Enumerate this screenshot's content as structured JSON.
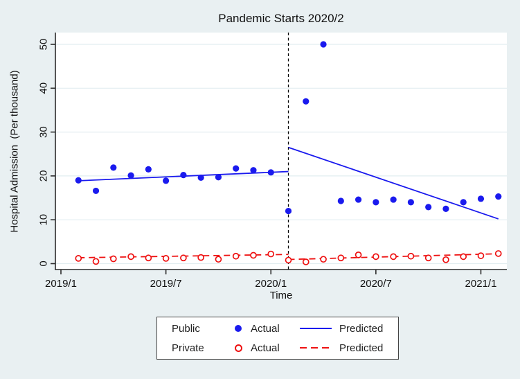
{
  "chart_data": {
    "type": "scatter",
    "title": "Pandemic Starts 2020/2",
    "xlabel": "Time",
    "ylabel": "Hospital Admission  (Per thousand)",
    "x_ticks": [
      "2019/1",
      "2019/7",
      "2020/1",
      "2020/7",
      "2021/1"
    ],
    "y_ticks": [
      0,
      10,
      20,
      30,
      40,
      50
    ],
    "ylim": [
      0,
      52
    ],
    "grid": "horizontal-only",
    "legend_position": "bottom-outside",
    "intervention_line": {
      "x": "2020/2",
      "style": "dashed",
      "color": "#000000"
    },
    "months": [
      "2019/2",
      "2019/3",
      "2019/4",
      "2019/5",
      "2019/6",
      "2019/7",
      "2019/8",
      "2019/9",
      "2019/10",
      "2019/11",
      "2019/12",
      "2020/1",
      "2020/2",
      "2020/3",
      "2020/4",
      "2020/5",
      "2020/6",
      "2020/7",
      "2020/8",
      "2020/9",
      "2020/10",
      "2020/11",
      "2020/12",
      "2021/1",
      "2021/2"
    ],
    "series": [
      {
        "name": "Public Actual",
        "type": "scatter",
        "marker": "filled-circle",
        "color": "#1a1aee",
        "values": [
          19.0,
          16.6,
          21.9,
          20.1,
          21.5,
          18.9,
          20.2,
          19.6,
          19.7,
          21.7,
          21.3,
          20.8,
          12.0,
          37.0,
          50.0,
          14.3,
          14.6,
          14.0,
          14.6,
          14.0,
          12.9,
          12.5,
          14.0,
          14.8,
          15.3
        ]
      },
      {
        "name": "Private Actual",
        "type": "scatter",
        "marker": "open-circle",
        "color": "#ee1111",
        "values": [
          1.2,
          0.5,
          1.1,
          1.6,
          1.3,
          1.2,
          1.3,
          1.4,
          1.0,
          1.7,
          1.9,
          2.2,
          0.8,
          0.4,
          1.0,
          1.3,
          2.0,
          1.6,
          1.6,
          1.7,
          1.3,
          0.9,
          1.6,
          1.8,
          2.3
        ]
      },
      {
        "name": "Public Predicted",
        "type": "line",
        "style": "solid",
        "color": "#1a1aee",
        "segments": [
          {
            "from": "2019/2",
            "to": "2020/2",
            "y": [
              18.9,
              21.0
            ]
          },
          {
            "from": "2020/2",
            "to": "2021/2",
            "y": [
              26.5,
              10.2
            ]
          }
        ]
      },
      {
        "name": "Private Predicted",
        "type": "line",
        "style": "dashed",
        "color": "#ee1111",
        "segments": [
          {
            "from": "2019/2",
            "to": "2020/2",
            "y": [
              1.35,
              2.1
            ]
          },
          {
            "from": "2020/2",
            "to": "2021/2",
            "y": [
              0.95,
              2.25
            ]
          }
        ]
      }
    ],
    "colors": {
      "public": "#1a1aee",
      "private": "#ee1111",
      "axis": "#2b2b2b",
      "grid": "#e2edf0",
      "background": "#e9f0f2",
      "plot_background": "#ffffff",
      "intervention": "#000000"
    }
  },
  "legend": {
    "rows": [
      {
        "group": "Public",
        "actual_label": "Actual",
        "predicted_label": "Predicted"
      },
      {
        "group": "Private",
        "actual_label": "Actual",
        "predicted_label": "Predicted"
      }
    ]
  }
}
